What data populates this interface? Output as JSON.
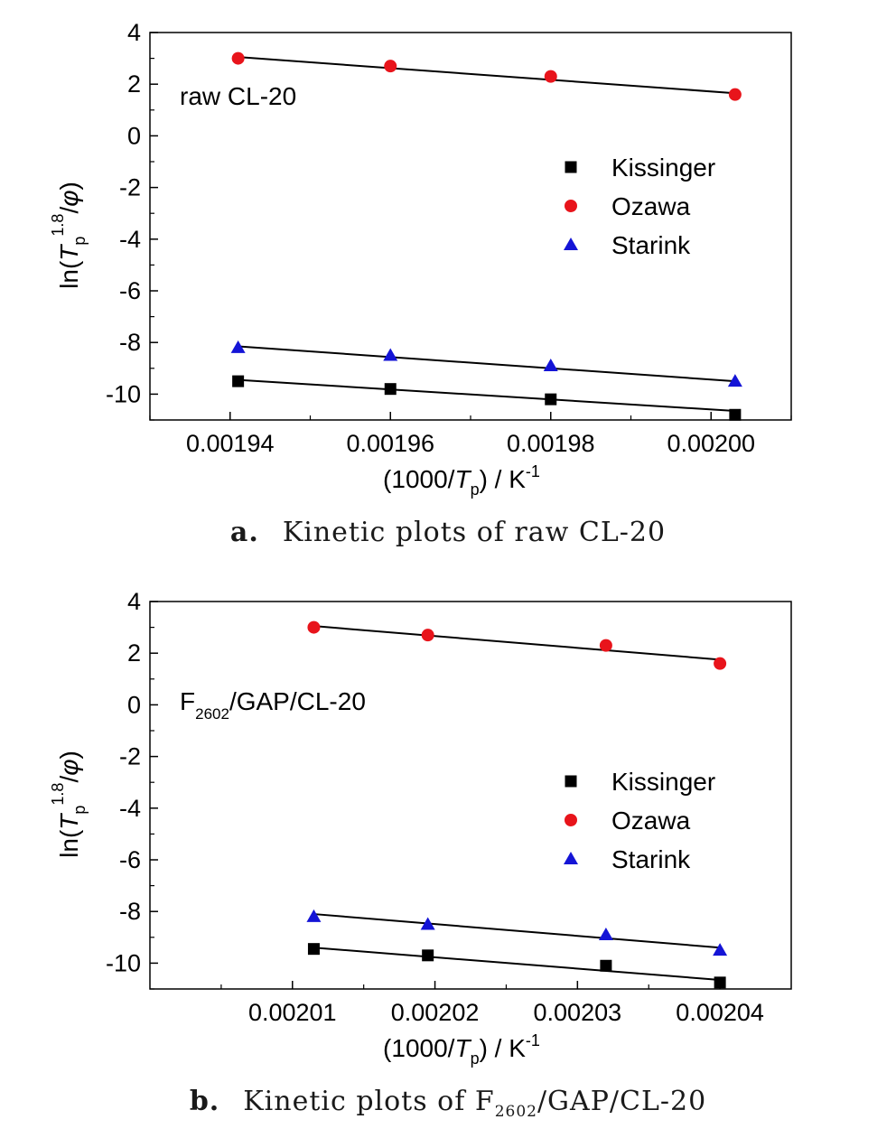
{
  "figures": [
    {
      "caption_letter": "a.",
      "caption_text": "Kinetic plots of raw CL-20",
      "annotation": "raw CL-20",
      "annotation_sub": "",
      "annotation_tail": ""
    },
    {
      "caption_letter": "b.",
      "caption_text_pre": "Kinetic plots of F",
      "caption_text_sub": "2602",
      "caption_text_post": "/GAP/CL-20",
      "annotation": "F",
      "annotation_sub": "2602",
      "annotation_tail": "/GAP/CL-20"
    }
  ],
  "legend_labels": [
    "Kissinger",
    "Ozawa",
    "Starink"
  ],
  "colors": {
    "Kissinger": "#000000",
    "Ozawa": "#e8141b",
    "Starink": "#1414d6",
    "line": "#000000"
  },
  "ylabel_parts": {
    "pre": "ln(",
    "T": "T",
    "sub": "p",
    "sup": "1.8",
    "post": "/",
    "phi": "φ",
    "close": ")"
  },
  "xlabel_parts": {
    "pre": "(1000/",
    "T": "T",
    "sub": "p",
    "post": ") / K",
    "sup": "-1"
  },
  "chart_data": [
    {
      "type": "scatter",
      "xlim": [
        0.00193,
        0.00201
      ],
      "ylim": [
        -11,
        4
      ],
      "xticks": [
        0.00194,
        0.00196,
        0.00198,
        0.002
      ],
      "xtick_labels": [
        "0.00194",
        "0.00196",
        "0.00198",
        "0.00200"
      ],
      "yticks": [
        4,
        2,
        0,
        -2,
        -4,
        -6,
        -8,
        -10
      ],
      "ytick_labels": [
        "4",
        "2",
        "0",
        "-2",
        "-4",
        "-6",
        "-8",
        "-10"
      ],
      "legend_position": "right",
      "grid": false,
      "series": [
        {
          "name": "Kissinger",
          "marker": "square",
          "x": [
            0.001941,
            0.00196,
            0.00198,
            0.002003
          ],
          "y": [
            -9.5,
            -9.8,
            -10.2,
            -10.8
          ],
          "fit": {
            "x": [
              0.001941,
              0.002003
            ],
            "y": [
              -9.45,
              -10.65
            ]
          }
        },
        {
          "name": "Ozawa",
          "marker": "circle",
          "x": [
            0.001941,
            0.00196,
            0.00198,
            0.002003
          ],
          "y": [
            3.0,
            2.7,
            2.3,
            1.6
          ],
          "fit": {
            "x": [
              0.001941,
              0.002003
            ],
            "y": [
              3.05,
              1.65
            ]
          }
        },
        {
          "name": "Starink",
          "marker": "triangle",
          "x": [
            0.001941,
            0.00196,
            0.00198,
            0.002003
          ],
          "y": [
            -8.2,
            -8.5,
            -8.9,
            -9.5
          ],
          "fit": {
            "x": [
              0.001941,
              0.002003
            ],
            "y": [
              -8.15,
              -9.5
            ]
          }
        }
      ]
    },
    {
      "type": "scatter",
      "xlim": [
        0.002,
        0.002045
      ],
      "ylim": [
        -11,
        4
      ],
      "xticks": [
        0.00201,
        0.00202,
        0.00203,
        0.00204
      ],
      "xtick_labels": [
        "0.00201",
        "0.00202",
        "0.00203",
        "0.00204"
      ],
      "yticks": [
        4,
        2,
        0,
        -2,
        -4,
        -6,
        -8,
        -10
      ],
      "ytick_labels": [
        "4",
        "2",
        "0",
        "-2",
        "-4",
        "-6",
        "-8",
        "-10"
      ],
      "legend_position": "right",
      "grid": false,
      "series": [
        {
          "name": "Kissinger",
          "marker": "square",
          "x": [
            0.0020115,
            0.0020195,
            0.002032,
            0.00204
          ],
          "y": [
            -9.45,
            -9.7,
            -10.1,
            -10.75
          ],
          "fit": {
            "x": [
              0.0020115,
              0.00204
            ],
            "y": [
              -9.4,
              -10.65
            ]
          }
        },
        {
          "name": "Ozawa",
          "marker": "circle",
          "x": [
            0.0020115,
            0.0020195,
            0.002032,
            0.00204
          ],
          "y": [
            3.0,
            2.7,
            2.3,
            1.6
          ],
          "fit": {
            "x": [
              0.0020115,
              0.00204
            ],
            "y": [
              3.05,
              1.75
            ]
          }
        },
        {
          "name": "Starink",
          "marker": "triangle",
          "x": [
            0.0020115,
            0.0020195,
            0.002032,
            0.00204
          ],
          "y": [
            -8.2,
            -8.5,
            -8.9,
            -9.5
          ],
          "fit": {
            "x": [
              0.0020115,
              0.00204
            ],
            "y": [
              -8.1,
              -9.4
            ]
          }
        }
      ]
    }
  ]
}
